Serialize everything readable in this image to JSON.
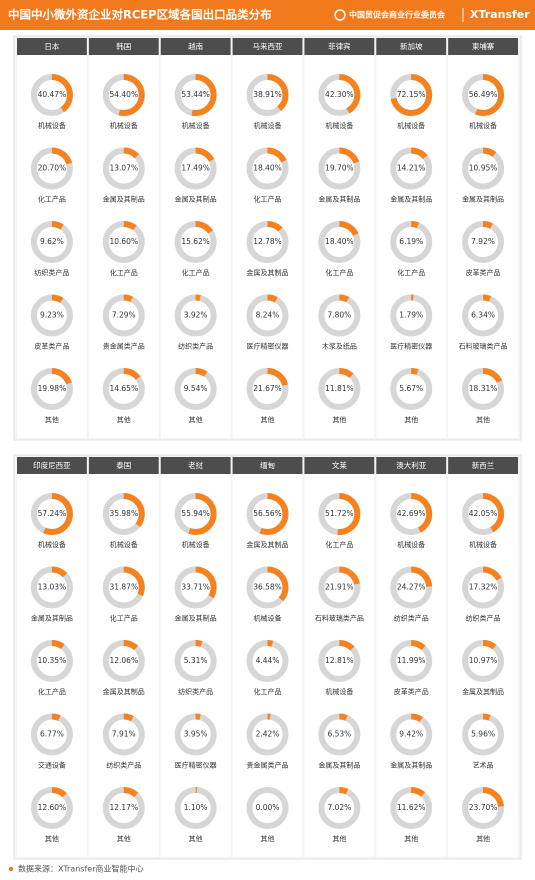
{
  "header": {
    "title": "中国中小微外资企业对RCEP区域各国出口品类分布",
    "org": "中国贸促会商业行业委员会",
    "brand": "XTransfer"
  },
  "panels": [
    {
      "countries": [
        {
          "name": "日本",
          "items": [
            {
              "value": 40.47,
              "value_label": "40.47%",
              "category": "机械设备"
            },
            {
              "value": 20.7,
              "value_label": "20.70%",
              "category": "化工产品"
            },
            {
              "value": 9.62,
              "value_label": "9.62%",
              "category": "纺织类产品"
            },
            {
              "value": 9.23,
              "value_label": "9.23%",
              "category": "皮革类产品"
            },
            {
              "value": 19.98,
              "value_label": "19.98%",
              "category": "其他"
            }
          ]
        },
        {
          "name": "韩国",
          "items": [
            {
              "value": 54.4,
              "value_label": "54.40%",
              "category": "机械设备"
            },
            {
              "value": 13.07,
              "value_label": "13.07%",
              "category": "金属及其制品"
            },
            {
              "value": 10.6,
              "value_label": "10.60%",
              "category": "化工产品"
            },
            {
              "value": 7.29,
              "value_label": "7.29%",
              "category": "贵金属类产品"
            },
            {
              "value": 14.65,
              "value_label": "14.65%",
              "category": "其他"
            }
          ]
        },
        {
          "name": "越南",
          "items": [
            {
              "value": 53.44,
              "value_label": "53.44%",
              "category": "机械设备"
            },
            {
              "value": 17.49,
              "value_label": "17.49%",
              "category": "金属及其制品"
            },
            {
              "value": 15.62,
              "value_label": "15.62%",
              "category": "化工产品"
            },
            {
              "value": 3.92,
              "value_label": "3.92%",
              "category": "纺织类产品"
            },
            {
              "value": 9.54,
              "value_label": "9.54%",
              "category": "其他"
            }
          ]
        },
        {
          "name": "马来西亚",
          "items": [
            {
              "value": 38.91,
              "value_label": "38.91%",
              "category": "机械设备"
            },
            {
              "value": 18.4,
              "value_label": "18.40%",
              "category": "化工产品"
            },
            {
              "value": 12.78,
              "value_label": "12.78%",
              "category": "金属及其制品"
            },
            {
              "value": 8.24,
              "value_label": "8.24%",
              "category": "医疗精密仪器"
            },
            {
              "value": 21.67,
              "value_label": "21.67%",
              "category": "其他"
            }
          ]
        },
        {
          "name": "菲律宾",
          "items": [
            {
              "value": 42.3,
              "value_label": "42.30%",
              "category": "机械设备"
            },
            {
              "value": 19.7,
              "value_label": "19.70%",
              "category": "金属及其制品"
            },
            {
              "value": 18.4,
              "value_label": "18.40%",
              "category": "化工产品"
            },
            {
              "value": 7.8,
              "value_label": "7.80%",
              "category": "木浆及纸品"
            },
            {
              "value": 11.81,
              "value_label": "11.81%",
              "category": "其他"
            }
          ]
        },
        {
          "name": "新加坡",
          "items": [
            {
              "value": 72.15,
              "value_label": "72.15%",
              "category": "机械设备"
            },
            {
              "value": 14.21,
              "value_label": "14.21%",
              "category": "金属及其制品"
            },
            {
              "value": 6.19,
              "value_label": "6.19%",
              "category": "化工产品"
            },
            {
              "value": 1.79,
              "value_label": "1.79%",
              "category": "医疗精密仪器"
            },
            {
              "value": 5.67,
              "value_label": "5.67%",
              "category": "其他"
            }
          ]
        },
        {
          "name": "柬埔寨",
          "items": [
            {
              "value": 56.49,
              "value_label": "56.49%",
              "category": "机械设备"
            },
            {
              "value": 10.95,
              "value_label": "10.95%",
              "category": "金属及其制品"
            },
            {
              "value": 7.92,
              "value_label": "7.92%",
              "category": "皮革类产品"
            },
            {
              "value": 6.34,
              "value_label": "6.34%",
              "category": "石料玻璃类产品"
            },
            {
              "value": 18.31,
              "value_label": "18.31%",
              "category": "其他"
            }
          ]
        }
      ]
    },
    {
      "countries": [
        {
          "name": "印度尼西亚",
          "items": [
            {
              "value": 57.24,
              "value_label": "57.24%",
              "category": "机械设备"
            },
            {
              "value": 13.03,
              "value_label": "13.03%",
              "category": "金属及其制品"
            },
            {
              "value": 10.35,
              "value_label": "10.35%",
              "category": "化工产品"
            },
            {
              "value": 6.77,
              "value_label": "6.77%",
              "category": "交通设备"
            },
            {
              "value": 12.6,
              "value_label": "12.60%",
              "category": "其他"
            }
          ]
        },
        {
          "name": "泰国",
          "items": [
            {
              "value": 35.98,
              "value_label": "35.98%",
              "category": "机械设备"
            },
            {
              "value": 31.87,
              "value_label": "31.87%",
              "category": "化工产品"
            },
            {
              "value": 12.06,
              "value_label": "12.06%",
              "category": "金属及其制品"
            },
            {
              "value": 7.91,
              "value_label": "7.91%",
              "category": "纺织类产品"
            },
            {
              "value": 12.17,
              "value_label": "12.17%",
              "category": "其他"
            }
          ]
        },
        {
          "name": "老挝",
          "items": [
            {
              "value": 55.94,
              "value_label": "55.94%",
              "category": "机械设备"
            },
            {
              "value": 33.71,
              "value_label": "33.71%",
              "category": "金属及其制品"
            },
            {
              "value": 5.31,
              "value_label": "5.31%",
              "category": "纺织类产品"
            },
            {
              "value": 3.95,
              "value_label": "3.95%",
              "category": "医疗精密仪器"
            },
            {
              "value": 1.1,
              "value_label": "1.10%",
              "category": "其他"
            }
          ]
        },
        {
          "name": "缅甸",
          "items": [
            {
              "value": 56.56,
              "value_label": "56.56%",
              "category": "金属及其制品"
            },
            {
              "value": 36.58,
              "value_label": "36.58%",
              "category": "机械设备"
            },
            {
              "value": 4.44,
              "value_label": "4.44%",
              "category": "化工产品"
            },
            {
              "value": 2.42,
              "value_label": "2.42%",
              "category": "贵金属类产品"
            },
            {
              "value": 0,
              "value_label": "0.00%",
              "category": "其他"
            }
          ]
        },
        {
          "name": "文莱",
          "items": [
            {
              "value": 51.72,
              "value_label": "51.72%",
              "category": "化工产品"
            },
            {
              "value": 21.91,
              "value_label": "21.91%",
              "category": "石料玻璃类产品"
            },
            {
              "value": 12.81,
              "value_label": "12.81%",
              "category": "机械设备"
            },
            {
              "value": 6.53,
              "value_label": "6.53%",
              "category": "金属及其制品"
            },
            {
              "value": 7.02,
              "value_label": "7.02%",
              "category": "其他"
            }
          ]
        },
        {
          "name": "澳大利亚",
          "items": [
            {
              "value": 42.69,
              "value_label": "42.69%",
              "category": "机械设备"
            },
            {
              "value": 24.27,
              "value_label": "24.27%",
              "category": "纺织类产品"
            },
            {
              "value": 11.99,
              "value_label": "11.99%",
              "category": "皮革类产品"
            },
            {
              "value": 9.42,
              "value_label": "9.42%",
              "category": "金属及其制品"
            },
            {
              "value": 11.62,
              "value_label": "11.62%",
              "category": "其他"
            }
          ]
        },
        {
          "name": "新西兰",
          "items": [
            {
              "value": 42.05,
              "value_label": "42.05%",
              "category": "机械设备"
            },
            {
              "value": 17.32,
              "value_label": "17.32%",
              "category": "纺织类产品"
            },
            {
              "value": 10.97,
              "value_label": "10.97%",
              "category": "金属及其制品"
            },
            {
              "value": 5.96,
              "value_label": "5.96%",
              "category": "艺术品"
            },
            {
              "value": 23.7,
              "value_label": "23.70%",
              "category": "其他"
            }
          ]
        }
      ]
    }
  ],
  "footer": {
    "source": "数据来源：XTransfer商业智能中心"
  }
}
